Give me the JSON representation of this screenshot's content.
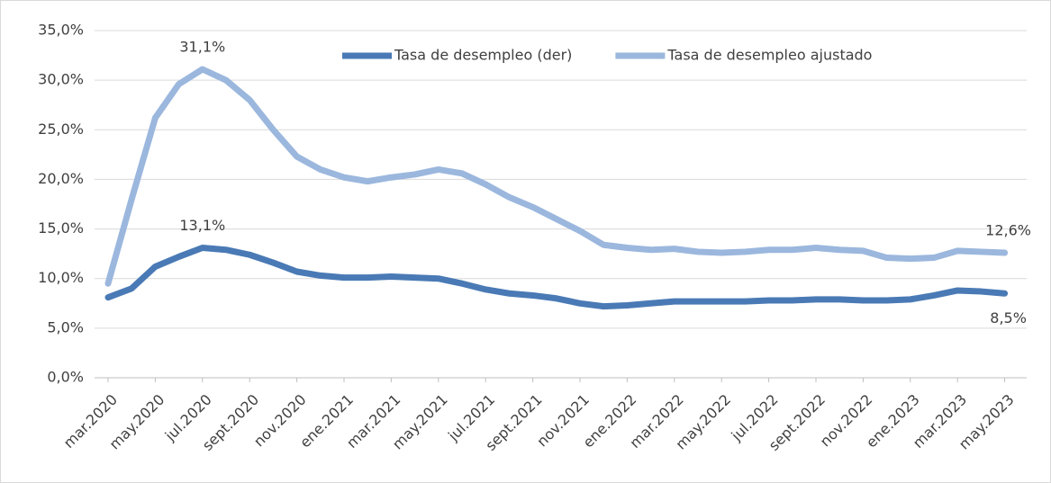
{
  "chart_data": {
    "type": "line",
    "categories": [
      "mar.2020",
      null,
      "may.2020",
      null,
      "jul.2020",
      null,
      "sept.2020",
      null,
      "nov.2020",
      null,
      "ene.2021",
      null,
      "mar.2021",
      null,
      "may.2021",
      null,
      "jul.2021",
      null,
      "sept.2021",
      null,
      "nov.2021",
      null,
      "ene.2022",
      null,
      "mar.2022",
      null,
      "may.2022",
      null,
      "jul.2022",
      null,
      "sept.2022",
      null,
      "nov.2022",
      null,
      "ene.2023",
      null,
      "mar.2023",
      null,
      "may.2023"
    ],
    "series": [
      {
        "name": "Tasa de desempleo (der)",
        "color": "#4a7ab5",
        "values": [
          8.1,
          9,
          11.2,
          12.2,
          13.1,
          12.9,
          12.4,
          11.6,
          10.7,
          10.3,
          10.1,
          10.1,
          10.2,
          10.1,
          10,
          9.5,
          8.9,
          8.5,
          8.3,
          8,
          7.5,
          7.2,
          7.3,
          7.5,
          7.7,
          7.7,
          7.7,
          7.7,
          7.8,
          7.8,
          7.9,
          7.9,
          7.8,
          7.8,
          7.9,
          8.3,
          8.8,
          8.7,
          8.5
        ],
        "value_labels": [
          null,
          null,
          null,
          null,
          "13,1%",
          null,
          null,
          null,
          null,
          null,
          null,
          null,
          null,
          null,
          null,
          null,
          null,
          null,
          null,
          null,
          null,
          null,
          null,
          null,
          null,
          null,
          null,
          null,
          null,
          null,
          null,
          null,
          null,
          null,
          null,
          null,
          null,
          null,
          "8,5%"
        ]
      },
      {
        "name": "Tasa de desempleo ajustado",
        "color": "#9bb7dd",
        "values": [
          9.5,
          18,
          26.2,
          29.6,
          31.1,
          30,
          28,
          25,
          22.3,
          21,
          20.2,
          19.8,
          20.2,
          20.5,
          21,
          20.6,
          19.5,
          18.2,
          17.2,
          16,
          14.8,
          13.4,
          13.1,
          12.9,
          13,
          12.7,
          12.6,
          12.7,
          12.9,
          12.9,
          13.1,
          12.9,
          12.8,
          12.1,
          12,
          12.1,
          12.8,
          12.7,
          12.6
        ],
        "value_labels": [
          null,
          null,
          null,
          null,
          "31,1%",
          null,
          null,
          null,
          null,
          null,
          null,
          null,
          null,
          null,
          null,
          null,
          null,
          null,
          null,
          null,
          null,
          null,
          null,
          null,
          null,
          null,
          null,
          null,
          null,
          null,
          null,
          null,
          null,
          null,
          null,
          null,
          null,
          null,
          "12,6%"
        ]
      }
    ],
    "ylim": [
      0,
      35
    ],
    "yticks": [
      {
        "value": 0,
        "label": "0,0%"
      },
      {
        "value": 5,
        "label": "5,0%"
      },
      {
        "value": 10,
        "label": "10,0%"
      },
      {
        "value": 15,
        "label": "15,0%"
      },
      {
        "value": 20,
        "label": "20,0%"
      },
      {
        "value": 25,
        "label": "25,0%"
      },
      {
        "value": 30,
        "label": "30,0%"
      },
      {
        "value": 35,
        "label": "35,0%"
      }
    ],
    "grid": true,
    "legend": "top"
  }
}
